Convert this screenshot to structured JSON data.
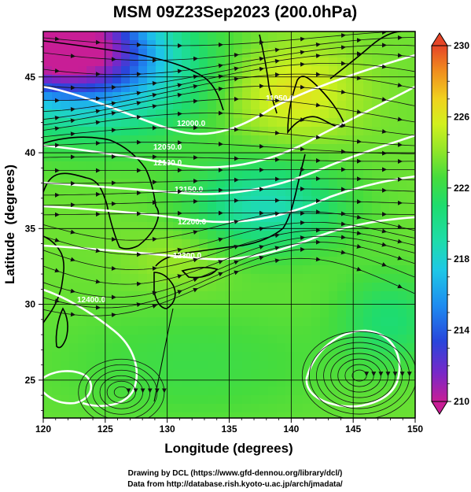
{
  "title": "MSM 09Z23Sep2023 (200.0hPa)",
  "chart_data": {
    "type": "heatmap",
    "title": "MSM 09Z23Sep2023 (200.0hPa)",
    "xlabel": "Longitude (degrees)",
    "ylabel": "Latitude  (degrees)",
    "xlim": [
      120,
      150
    ],
    "ylim": [
      22.5,
      48
    ],
    "xticks": [
      "120",
      "125",
      "130",
      "135",
      "140",
      "145",
      "150"
    ],
    "yticks": [
      "25",
      "30",
      "35",
      "40",
      "45"
    ],
    "grid": true,
    "colorbar": {
      "min": 210,
      "max": 230,
      "tick_labels": [
        "210",
        "214",
        "218",
        "222",
        "226",
        "230"
      ],
      "extend": "both",
      "colors": [
        "#c81e96",
        "#7828c8",
        "#2846dc",
        "#1e8cf0",
        "#1ec8e6",
        "#1edcaa",
        "#1edc6e",
        "#46dc3c",
        "#96e628",
        "#d2f01e",
        "#f0d21e",
        "#f08c1e",
        "#e64628"
      ]
    },
    "contours": {
      "color": "#ffffff",
      "labels": [
        "11950.0",
        "12000.0",
        "12050.0",
        "12100.0",
        "12150.0",
        "12200.0",
        "12300.0",
        "12400.0"
      ]
    },
    "overlays": [
      "wind streamlines",
      "coastlines"
    ]
  },
  "credits": {
    "line1": "Drawing by DCL (https://www.gfd-dennou.org/library/dcl/)",
    "line2": "Data from http://database.rish.kyoto-u.ac.jp/arch/jmadata/"
  }
}
